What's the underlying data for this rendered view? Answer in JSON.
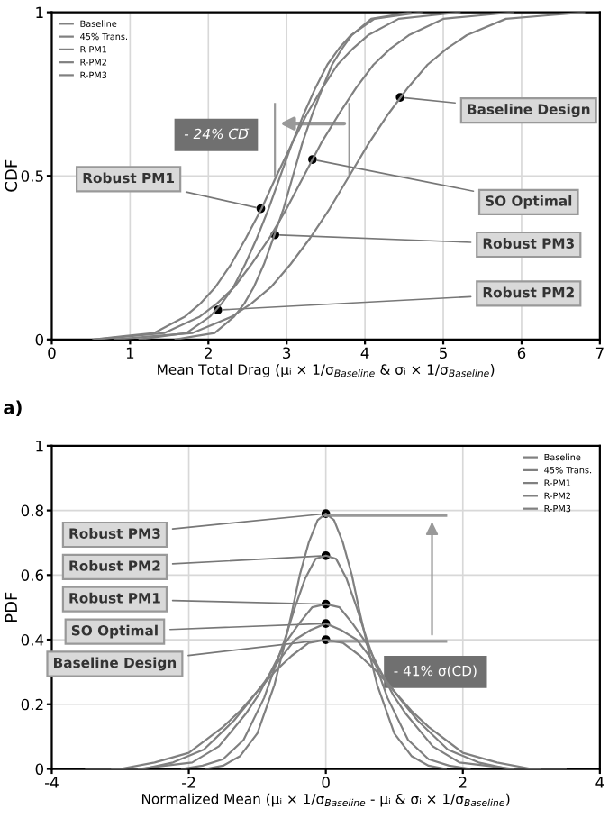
{
  "chart_data": [
    {
      "type": "line",
      "ylabel": "CDF",
      "xlabel": "Mean Total Drag (μᵢ × 1/σ$_{Baseline}$ & σᵢ × 1/σ$_{Baseline}$)",
      "xlim": [
        0,
        7
      ],
      "xticks": [
        0,
        1,
        2,
        3,
        4,
        5,
        6,
        7
      ],
      "ylim": [
        0,
        1
      ],
      "yticks": [
        0,
        0.5,
        1
      ],
      "grid": true,
      "legend": "top left",
      "marker": "none",
      "line_style": "solid",
      "series": [
        {
          "name": "Baseline",
          "color": "#808080",
          "x": [
            0.8,
            1.3,
            1.8,
            2.3,
            2.55,
            2.8,
            3.05,
            3.3,
            3.55,
            3.8,
            4.05,
            4.3,
            4.55,
            4.8,
            5.05,
            5.3,
            5.8,
            6.3,
            6.8
          ],
          "values": [
            0,
            0.01,
            0.02,
            0.07,
            0.11,
            0.16,
            0.23,
            0.31,
            0.4,
            0.5,
            0.6,
            0.69,
            0.77,
            0.84,
            0.89,
            0.93,
            0.98,
            0.99,
            1
          ]
        },
        {
          "name": "45% Trans.",
          "color": "#808080",
          "x": [
            0.55,
            1.0,
            1.44,
            1.89,
            2.11,
            2.33,
            2.55,
            2.78,
            3.0,
            3.22,
            3.44,
            3.67,
            3.89,
            4.11,
            4.33,
            4.56,
            5.0,
            5.45,
            5.89
          ],
          "values": [
            0,
            0.01,
            0.02,
            0.07,
            0.11,
            0.16,
            0.23,
            0.31,
            0.4,
            0.5,
            0.6,
            0.69,
            0.77,
            0.84,
            0.89,
            0.93,
            0.98,
            0.99,
            1
          ]
        },
        {
          "name": "R-PM1",
          "color": "#808080",
          "x": [
            0.53,
            0.92,
            1.31,
            1.7,
            1.9,
            2.09,
            2.29,
            2.48,
            2.68,
            2.87,
            3.07,
            3.26,
            3.46,
            3.65,
            3.85,
            4.04,
            4.43,
            4.82,
            5.21
          ],
          "values": [
            0,
            0.01,
            0.02,
            0.07,
            0.11,
            0.16,
            0.23,
            0.31,
            0.4,
            0.5,
            0.6,
            0.69,
            0.77,
            0.84,
            0.89,
            0.93,
            0.98,
            0.99,
            1
          ]
        },
        {
          "name": "R-PM2",
          "color": "#808080",
          "x": [
            1.12,
            1.42,
            1.72,
            2.02,
            2.17,
            2.32,
            2.47,
            2.62,
            2.77,
            2.92,
            3.07,
            3.22,
            3.37,
            3.52,
            3.67,
            3.82,
            4.12,
            4.42,
            4.72
          ],
          "values": [
            0,
            0.01,
            0.02,
            0.07,
            0.11,
            0.16,
            0.23,
            0.31,
            0.4,
            0.5,
            0.6,
            0.69,
            0.77,
            0.84,
            0.89,
            0.93,
            0.98,
            0.99,
            1
          ]
        },
        {
          "name": "R-PM3",
          "color": "#808080",
          "x": [
            1.58,
            1.83,
            2.08,
            2.33,
            2.46,
            2.58,
            2.71,
            2.83,
            2.96,
            3.08,
            3.2,
            3.33,
            3.46,
            3.58,
            3.71,
            3.83,
            4.08,
            4.33,
            4.58
          ],
          "values": [
            0,
            0.01,
            0.02,
            0.07,
            0.11,
            0.16,
            0.23,
            0.31,
            0.4,
            0.5,
            0.6,
            0.69,
            0.77,
            0.84,
            0.89,
            0.93,
            0.98,
            0.99,
            1
          ]
        }
      ],
      "annotations": [
        {
          "text": "Baseline Design",
          "x": 4.45,
          "y": 0.74
        },
        {
          "text": "SO Optimal",
          "x": 3.33,
          "y": 0.55
        },
        {
          "text": "Robust PM1",
          "x": 2.67,
          "y": 0.4
        },
        {
          "text": "Robust PM3",
          "x": 2.85,
          "y": 0.32
        },
        {
          "text": "Robust PM2",
          "x": 2.12,
          "y": 0.09
        },
        "- 24% C̄D̄",
        "a)"
      ]
    },
    {
      "type": "line",
      "ylabel": "PDF",
      "xlabel": "Normalized Mean (μᵢ × 1/σ$_{Baseline}$ - μᵢ & σᵢ × 1/σ$_{Baseline}$)",
      "xlim": [
        -4,
        4
      ],
      "xticks": [
        -4,
        -2,
        0,
        2,
        4
      ],
      "ylim": [
        0,
        1
      ],
      "yticks": [
        0,
        0.2,
        0.4,
        0.6,
        0.8,
        1
      ],
      "grid": true,
      "legend": "top right",
      "marker": "none",
      "line_style": "solid",
      "series": [
        {
          "name": "Baseline",
          "color": "#808080",
          "x": [
            -3.5,
            -3,
            -2.5,
            -2,
            -1.5,
            -1.25,
            -1,
            -0.75,
            -0.5,
            -0.25,
            0,
            0.25,
            0.5,
            0.75,
            1,
            1.25,
            1.5,
            2,
            2.5,
            3,
            3.5
          ],
          "values": [
            0,
            0,
            0.02,
            0.05,
            0.13,
            0.18,
            0.24,
            0.3,
            0.35,
            0.39,
            0.4,
            0.39,
            0.35,
            0.3,
            0.24,
            0.18,
            0.13,
            0.05,
            0.02,
            0,
            0
          ]
        },
        {
          "name": "45% Trans.",
          "color": "#808080",
          "x": [
            -3.12,
            -2.67,
            -2.23,
            -1.78,
            -1.34,
            -1.11,
            -0.89,
            -0.67,
            -0.45,
            -0.22,
            0,
            0.22,
            0.45,
            0.67,
            0.89,
            1.11,
            1.34,
            1.78,
            2.23,
            2.67,
            3.12
          ],
          "values": [
            0,
            0,
            0.02,
            0.06,
            0.15,
            0.21,
            0.27,
            0.34,
            0.4,
            0.43,
            0.45,
            0.43,
            0.4,
            0.34,
            0.27,
            0.21,
            0.15,
            0.06,
            0.02,
            0,
            0
          ]
        },
        {
          "name": "R-PM1",
          "color": "#808080",
          "x": [
            -2.73,
            -2.34,
            -1.95,
            -1.56,
            -1.17,
            -0.98,
            -0.78,
            -0.59,
            -0.39,
            -0.2,
            0,
            0.2,
            0.39,
            0.59,
            0.78,
            0.98,
            1.17,
            1.56,
            1.95,
            2.34,
            2.73
          ],
          "values": [
            0,
            0.01,
            0.02,
            0.07,
            0.17,
            0.23,
            0.31,
            0.39,
            0.45,
            0.5,
            0.51,
            0.5,
            0.45,
            0.39,
            0.31,
            0.23,
            0.17,
            0.07,
            0.02,
            0.01,
            0
          ]
        },
        {
          "name": "R-PM2",
          "color": "#808080",
          "x": [
            -2.1,
            -1.8,
            -1.5,
            -1.2,
            -0.9,
            -0.75,
            -0.6,
            -0.45,
            -0.3,
            -0.15,
            0,
            0.15,
            0.3,
            0.45,
            0.6,
            0.75,
            0.9,
            1.2,
            1.5,
            1.8,
            2.1
          ],
          "values": [
            0,
            0.01,
            0.03,
            0.09,
            0.22,
            0.31,
            0.4,
            0.5,
            0.59,
            0.65,
            0.66,
            0.65,
            0.59,
            0.5,
            0.4,
            0.31,
            0.22,
            0.09,
            0.03,
            0.01,
            0
          ]
        },
        {
          "name": "R-PM3",
          "color": "#808080",
          "x": [
            -1.75,
            -1.5,
            -1.25,
            -1,
            -0.75,
            -0.62,
            -0.5,
            -0.38,
            -0.25,
            -0.12,
            0,
            0.12,
            0.25,
            0.38,
            0.5,
            0.62,
            0.75,
            1,
            1.25,
            1.5,
            1.75
          ],
          "values": [
            0,
            0.01,
            0.04,
            0.11,
            0.26,
            0.37,
            0.48,
            0.6,
            0.7,
            0.77,
            0.79,
            0.77,
            0.7,
            0.6,
            0.48,
            0.37,
            0.26,
            0.11,
            0.04,
            0.01,
            0
          ]
        }
      ],
      "annotations": [
        {
          "text": "Robust PM3",
          "x": 0,
          "y": 0.79
        },
        {
          "text": "Robust PM2",
          "x": 0,
          "y": 0.66
        },
        {
          "text": "Robust PM1",
          "x": 0,
          "y": 0.51
        },
        {
          "text": "SO Optimal",
          "x": 0,
          "y": 0.45
        },
        {
          "text": "Baseline Design",
          "x": 0,
          "y": 0.4
        },
        "- 41% σ(CD)"
      ]
    }
  ]
}
